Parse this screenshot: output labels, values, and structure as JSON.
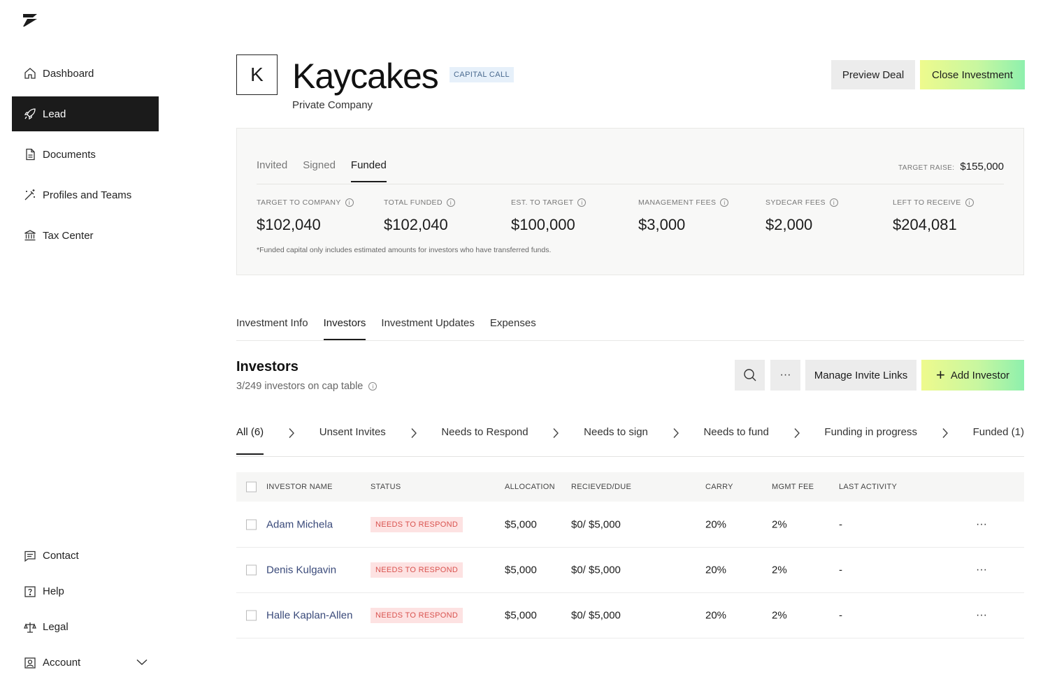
{
  "sidebar": {
    "logo_icon": "sydecar-logo",
    "items": [
      {
        "label": "Dashboard",
        "icon": "home-icon"
      },
      {
        "label": "Lead",
        "icon": "rocket-icon"
      },
      {
        "label": "Documents",
        "icon": "document-icon"
      },
      {
        "label": "Profiles and Teams",
        "icon": "magic-wand-icon"
      },
      {
        "label": "Tax Center",
        "icon": "bank-icon"
      }
    ],
    "bottom_items": [
      {
        "label": "Contact",
        "icon": "chat-icon"
      },
      {
        "label": "Help",
        "icon": "help-icon"
      },
      {
        "label": "Legal",
        "icon": "scale-icon"
      },
      {
        "label": "Account",
        "icon": "user-icon"
      }
    ]
  },
  "header": {
    "avatar_letter": "K",
    "title": "Kaycakes",
    "badge": "CAPITAL CALL",
    "subtitle": "Private Company",
    "preview_label": "Preview Deal",
    "close_label": "Close Investment"
  },
  "funding": {
    "tabs": [
      "Invited",
      "Signed",
      "Funded"
    ],
    "active_tab": "Funded",
    "target_raise_label": "TARGET RAISE:",
    "target_raise_value": "$155,000",
    "stats": [
      {
        "label": "TARGET TO COMPANY",
        "value": "$102,040"
      },
      {
        "label": "TOTAL FUNDED",
        "value": "$102,040"
      },
      {
        "label": "EST. TO TARGET",
        "value": "$100,000"
      },
      {
        "label": "MANAGEMENT FEES",
        "value": "$3,000"
      },
      {
        "label": "SYDECAR FEES",
        "value": "$2,000"
      },
      {
        "label": "LEFT TO RECEIVE",
        "value": "$204,081"
      }
    ],
    "footnote": "*Funded capital only includes estimated amounts for investors who have transferred funds."
  },
  "section_tabs": [
    "Investment Info",
    "Investors",
    "Investment Updates",
    "Expenses"
  ],
  "investors": {
    "title": "Investors",
    "subtitle": "3/249 investors on cap table",
    "more_label": "···",
    "manage_label": "Manage Invite Links",
    "add_label": "Add Investor",
    "filters": [
      "All (6)",
      "Unsent Invites",
      "Needs to Respond",
      "Needs to sign",
      "Needs to fund",
      "Funding in progress",
      "Funded (1)"
    ],
    "columns": {
      "name": "INVESTOR NAME",
      "status": "STATUS",
      "allocation": "ALLOCATION",
      "received": "RECIEVED/DUE",
      "carry": "CARRY",
      "mgmt": "MGMT FEE",
      "last": "LAST ACTIVITY"
    },
    "rows": [
      {
        "name": "Adam Michela",
        "status": "NEEDS TO RESPOND",
        "allocation": "$5,000",
        "received": "$0/ $5,000",
        "carry": "20%",
        "mgmt": "2%",
        "last": "-",
        "actions": "···"
      },
      {
        "name": "Denis Kulgavin",
        "status": "NEEDS TO RESPOND",
        "allocation": "$5,000",
        "received": "$0/ $5,000",
        "carry": "20%",
        "mgmt": "2%",
        "last": "-",
        "actions": "···"
      },
      {
        "name": "Halle Kaplan-Allen",
        "status": "NEEDS TO RESPOND",
        "allocation": "$5,000",
        "received": "$0/ $5,000",
        "carry": "20%",
        "mgmt": "2%",
        "last": "-",
        "actions": "···"
      }
    ]
  },
  "colors": {
    "accent_gradient_start": "#eefa8d",
    "accent_gradient_end": "#8ef0ad",
    "active_nav": "#1b1b1b",
    "status_bg": "#fde2e2",
    "status_text": "#d9534f",
    "badge_bg": "#e6f0fa"
  }
}
